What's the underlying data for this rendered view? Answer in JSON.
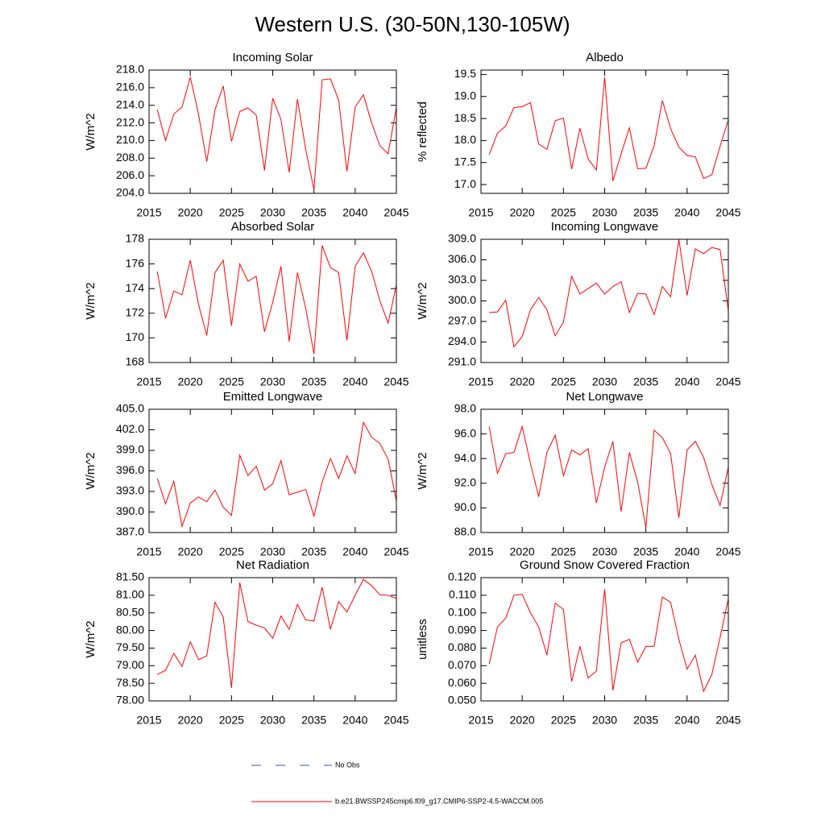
{
  "title": "Western U.S. (30-50N,130-105W)",
  "legend": [
    {
      "name": "No Obs",
      "color": "#3b4fb8",
      "dashed": true
    },
    {
      "name": "b.e21.BWSSP245cmip6.f09_g17.CMIP6-SSP2-4.5-WACCM.005",
      "color": "#ff0000",
      "dashed": false
    }
  ],
  "chart_data": [
    {
      "type": "line",
      "title": "Incoming Solar",
      "ylabel": "W/m^2",
      "x": [
        2016,
        2017,
        2018,
        2019,
        2020,
        2021,
        2022,
        2023,
        2024,
        2025,
        2026,
        2027,
        2028,
        2029,
        2030,
        2031,
        2032,
        2033,
        2034,
        2035,
        2036,
        2037,
        2038,
        2039,
        2040,
        2041,
        2042,
        2043,
        2044,
        2045
      ],
      "xlim": [
        2015,
        2045
      ],
      "xticks": [
        2015,
        2020,
        2025,
        2030,
        2035,
        2040,
        2045
      ],
      "ylim": [
        204,
        218
      ],
      "yticks": [
        {
          "value": 204,
          "label": "204.0"
        },
        {
          "value": 206,
          "label": "206.0"
        },
        {
          "value": 208,
          "label": "208.0"
        },
        {
          "value": 210,
          "label": "210.0"
        },
        {
          "value": 212,
          "label": "212.0"
        },
        {
          "value": 214,
          "label": "214.0"
        },
        {
          "value": 216,
          "label": "216.0"
        },
        {
          "value": 218,
          "label": "218.0"
        }
      ],
      "series": [
        {
          "color": "#ff0000",
          "values": [
            213.5,
            210,
            213,
            213.8,
            217.2,
            213,
            207.6,
            213.5,
            216.2,
            209.9,
            213.3,
            213.7,
            212.9,
            206.6,
            214.8,
            212.4,
            206.4,
            214.7,
            209,
            204.4,
            216.9,
            217,
            214.6,
            206.5,
            213.8,
            215.2,
            212,
            209.4,
            208.5,
            213.8
          ]
        }
      ]
    },
    {
      "type": "line",
      "title": "Albedo",
      "ylabel": "% reflected",
      "x": [
        2016,
        2017,
        2018,
        2019,
        2020,
        2021,
        2022,
        2023,
        2024,
        2025,
        2026,
        2027,
        2028,
        2029,
        2030,
        2031,
        2032,
        2033,
        2034,
        2035,
        2036,
        2037,
        2038,
        2039,
        2040,
        2041,
        2042,
        2043,
        2044,
        2045
      ],
      "xlim": [
        2015,
        2045
      ],
      "xticks": [
        2015,
        2020,
        2025,
        2030,
        2035,
        2040,
        2045
      ],
      "ylim": [
        16.8,
        19.6
      ],
      "yticks": [
        {
          "value": 17,
          "label": "17.0"
        },
        17.5,
        {
          "value": 18,
          "label": "18.0"
        },
        18.5,
        {
          "value": 19,
          "label": "19.0"
        },
        19.5
      ],
      "series": [
        {
          "color": "#ff0000",
          "values": [
            17.68,
            18.17,
            18.33,
            18.75,
            18.77,
            18.86,
            17.92,
            17.8,
            18.45,
            18.51,
            17.35,
            18.28,
            17.58,
            17.33,
            19.44,
            17.08,
            17.7,
            18.29,
            17.36,
            17.37,
            17.88,
            18.91,
            18.27,
            17.85,
            17.66,
            17.63,
            17.14,
            17.22,
            17.87,
            18.47
          ]
        }
      ]
    },
    {
      "type": "line",
      "title": "Absorbed Solar",
      "ylabel": "W/m^2",
      "x": [
        2016,
        2017,
        2018,
        2019,
        2020,
        2021,
        2022,
        2023,
        2024,
        2025,
        2026,
        2027,
        2028,
        2029,
        2030,
        2031,
        2032,
        2033,
        2034,
        2035,
        2036,
        2037,
        2038,
        2039,
        2040,
        2041,
        2042,
        2043,
        2044,
        2045
      ],
      "xlim": [
        2015,
        2045
      ],
      "xticks": [
        2015,
        2020,
        2025,
        2030,
        2035,
        2040,
        2045
      ],
      "ylim": [
        168,
        178
      ],
      "yticks": [
        168,
        170,
        172,
        174,
        176,
        178
      ],
      "series": [
        {
          "color": "#ff0000",
          "values": [
            175.4,
            171.6,
            173.8,
            173.5,
            176.3,
            172.7,
            170.2,
            175.3,
            176.3,
            171,
            176,
            174.6,
            175,
            170.5,
            172.9,
            175.8,
            169.7,
            175.3,
            172.4,
            168.7,
            177.5,
            175.7,
            175.3,
            169.8,
            175.8,
            176.9,
            175.4,
            173,
            171.2,
            174.3
          ]
        }
      ]
    },
    {
      "type": "line",
      "title": "Incoming Longwave",
      "ylabel": "W/m^2",
      "x": [
        2016,
        2017,
        2018,
        2019,
        2020,
        2021,
        2022,
        2023,
        2024,
        2025,
        2026,
        2027,
        2028,
        2029,
        2030,
        2031,
        2032,
        2033,
        2034,
        2035,
        2036,
        2037,
        2038,
        2039,
        2040,
        2041,
        2042,
        2043,
        2044,
        2045
      ],
      "xlim": [
        2015,
        2045
      ],
      "xticks": [
        2015,
        2020,
        2025,
        2030,
        2035,
        2040,
        2045
      ],
      "ylim": [
        291,
        309
      ],
      "yticks": [
        {
          "value": 291,
          "label": "291.0"
        },
        {
          "value": 294,
          "label": "294.0"
        },
        {
          "value": 297,
          "label": "297.0"
        },
        {
          "value": 300,
          "label": "300.0"
        },
        {
          "value": 303,
          "label": "303.0"
        },
        {
          "value": 306,
          "label": "306.0"
        },
        {
          "value": 309,
          "label": "309.0"
        }
      ],
      "series": [
        {
          "color": "#ff0000",
          "values": [
            298.3,
            298.4,
            300.1,
            293.3,
            294.8,
            298.7,
            300.5,
            298.7,
            294.9,
            296.9,
            303.6,
            301,
            301.8,
            302.6,
            301,
            302.1,
            302.8,
            298.3,
            301.1,
            301,
            298,
            302.1,
            300.6,
            309,
            300.8,
            307.6,
            306.9,
            307.8,
            307.5,
            298.6
          ]
        }
      ]
    },
    {
      "type": "line",
      "title": "Emitted Longwave",
      "ylabel": "W/m^2",
      "x": [
        2016,
        2017,
        2018,
        2019,
        2020,
        2021,
        2022,
        2023,
        2024,
        2025,
        2026,
        2027,
        2028,
        2029,
        2030,
        2031,
        2032,
        2033,
        2034,
        2035,
        2036,
        2037,
        2038,
        2039,
        2040,
        2041,
        2042,
        2043,
        2044,
        2045
      ],
      "xlim": [
        2015,
        2045
      ],
      "xticks": [
        2015,
        2020,
        2025,
        2030,
        2035,
        2040,
        2045
      ],
      "ylim": [
        387,
        405
      ],
      "yticks": [
        {
          "value": 387,
          "label": "387.0"
        },
        {
          "value": 390,
          "label": "390.0"
        },
        {
          "value": 393,
          "label": "393.0"
        },
        {
          "value": 396,
          "label": "396.0"
        },
        {
          "value": 399,
          "label": "399.0"
        },
        {
          "value": 402,
          "label": "402.0"
        },
        {
          "value": 405,
          "label": "405.0"
        }
      ],
      "series": [
        {
          "color": "#ff0000",
          "values": [
            394.9,
            391.2,
            394.5,
            387.9,
            391.3,
            392.2,
            391.5,
            393.2,
            390.7,
            389.5,
            398.3,
            395.3,
            396.7,
            393.2,
            394.1,
            397.5,
            392.5,
            392.9,
            393.3,
            389.4,
            394.4,
            397.8,
            394.9,
            398.2,
            395.6,
            403.1,
            400.9,
            400,
            397.7,
            391.6
          ]
        }
      ]
    },
    {
      "type": "line",
      "title": "Net Longwave",
      "ylabel": "W/m^2",
      "x": [
        2016,
        2017,
        2018,
        2019,
        2020,
        2021,
        2022,
        2023,
        2024,
        2025,
        2026,
        2027,
        2028,
        2029,
        2030,
        2031,
        2032,
        2033,
        2034,
        2035,
        2036,
        2037,
        2038,
        2039,
        2040,
        2041,
        2042,
        2043,
        2044,
        2045
      ],
      "xlim": [
        2015,
        2045
      ],
      "xticks": [
        2015,
        2020,
        2025,
        2030,
        2035,
        2040,
        2045
      ],
      "ylim": [
        88,
        98
      ],
      "yticks": [
        {
          "value": 88,
          "label": "88.0"
        },
        {
          "value": 90,
          "label": "90.0"
        },
        {
          "value": 92,
          "label": "92.0"
        },
        {
          "value": 94,
          "label": "94.0"
        },
        {
          "value": 96,
          "label": "96.0"
        },
        {
          "value": 98,
          "label": "98.0"
        }
      ],
      "series": [
        {
          "color": "#ff0000",
          "values": [
            96.6,
            92.8,
            94.4,
            94.5,
            96.6,
            93.6,
            90.9,
            94.5,
            95.9,
            92.6,
            94.7,
            94.3,
            94.8,
            90.4,
            93.3,
            95.4,
            89.7,
            94.5,
            92.1,
            88.4,
            96.3,
            95.7,
            94.4,
            89.2,
            94.7,
            95.4,
            94.1,
            91.9,
            90.2,
            93.3
          ]
        }
      ]
    },
    {
      "type": "line",
      "title": "Net Radiation",
      "ylabel": "W/m^2",
      "x": [
        2016,
        2017,
        2018,
        2019,
        2020,
        2021,
        2022,
        2023,
        2024,
        2025,
        2026,
        2027,
        2028,
        2029,
        2030,
        2031,
        2032,
        2033,
        2034,
        2035,
        2036,
        2037,
        2038,
        2039,
        2040,
        2041,
        2042,
        2043,
        2044,
        2045
      ],
      "xlim": [
        2015,
        2045
      ],
      "xticks": [
        2015,
        2020,
        2025,
        2030,
        2035,
        2040,
        2045
      ],
      "ylim": [
        78,
        81.5
      ],
      "yticks": [
        {
          "value": 78,
          "label": "78.00"
        },
        {
          "value": 78.5,
          "label": "78.50"
        },
        {
          "value": 79,
          "label": "79.00"
        },
        {
          "value": 79.5,
          "label": "79.50"
        },
        {
          "value": 80,
          "label": "80.00"
        },
        {
          "value": 80.5,
          "label": "80.50"
        },
        {
          "value": 81,
          "label": "81.00"
        },
        {
          "value": 81.5,
          "label": "81.50"
        }
      ],
      "series": [
        {
          "color": "#ff0000",
          "values": [
            78.75,
            78.87,
            79.35,
            78.98,
            79.68,
            79.17,
            79.28,
            80.8,
            80.38,
            78.37,
            81.36,
            80.25,
            80.15,
            80.07,
            79.78,
            80.41,
            80.03,
            80.74,
            80.3,
            80.27,
            81.23,
            80.03,
            80.82,
            80.52,
            81,
            81.45,
            81.27,
            81.01,
            81,
            80.91
          ]
        }
      ]
    },
    {
      "type": "line",
      "title": "Ground Snow Covered Fraction",
      "ylabel": "unitless",
      "x": [
        2016,
        2017,
        2018,
        2019,
        2020,
        2021,
        2022,
        2023,
        2024,
        2025,
        2026,
        2027,
        2028,
        2029,
        2030,
        2031,
        2032,
        2033,
        2034,
        2035,
        2036,
        2037,
        2038,
        2039,
        2040,
        2041,
        2042,
        2043,
        2044,
        2045
      ],
      "xlim": [
        2015,
        2045
      ],
      "xticks": [
        2015,
        2020,
        2025,
        2030,
        2035,
        2040,
        2045
      ],
      "ylim": [
        0.05,
        0.12
      ],
      "yticks": [
        {
          "value": 0.05,
          "label": "0.050"
        },
        {
          "value": 0.06,
          "label": "0.060"
        },
        {
          "value": 0.07,
          "label": "0.070"
        },
        {
          "value": 0.08,
          "label": "0.080"
        },
        {
          "value": 0.09,
          "label": "0.090"
        },
        {
          "value": 0.1,
          "label": "0.100"
        },
        {
          "value": 0.11,
          "label": "0.110"
        },
        {
          "value": 0.12,
          "label": "0.120"
        }
      ],
      "series": [
        {
          "color": "#ff0000",
          "values": [
            0.071,
            0.092,
            0.097,
            0.11,
            0.1105,
            0.1,
            0.092,
            0.076,
            0.1055,
            0.102,
            0.061,
            0.081,
            0.063,
            0.067,
            0.1135,
            0.056,
            0.083,
            0.085,
            0.072,
            0.081,
            0.081,
            0.109,
            0.106,
            0.085,
            0.068,
            0.076,
            0.0555,
            0.065,
            0.086,
            0.108
          ]
        }
      ]
    }
  ]
}
